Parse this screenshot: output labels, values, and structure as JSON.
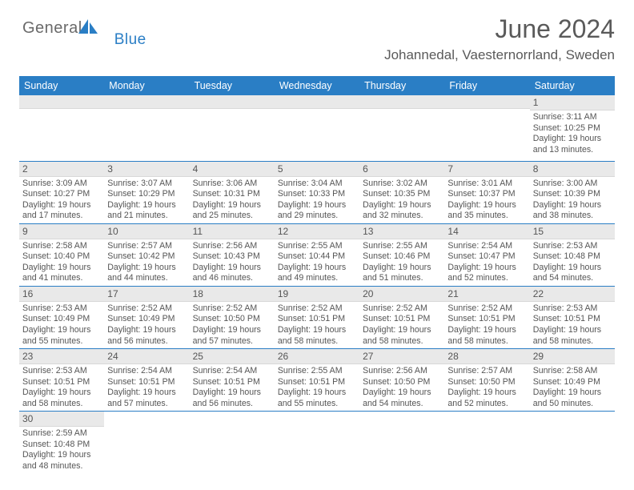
{
  "brand": {
    "part1": "General",
    "part2": "Blue"
  },
  "title": "June 2024",
  "location": "Johannedal, Vaesternorrland, Sweden",
  "headers": [
    "Sunday",
    "Monday",
    "Tuesday",
    "Wednesday",
    "Thursday",
    "Friday",
    "Saturday"
  ],
  "colors": {
    "headerBg": "#2a7ec5",
    "text": "#555555",
    "stripe": "#e9e9e9"
  },
  "weeks": [
    [
      null,
      null,
      null,
      null,
      null,
      null,
      {
        "n": "1",
        "sr": "3:11 AM",
        "ss": "10:25 PM",
        "dl": "19 hours and 13 minutes."
      }
    ],
    [
      {
        "n": "2",
        "sr": "3:09 AM",
        "ss": "10:27 PM",
        "dl": "19 hours and 17 minutes."
      },
      {
        "n": "3",
        "sr": "3:07 AM",
        "ss": "10:29 PM",
        "dl": "19 hours and 21 minutes."
      },
      {
        "n": "4",
        "sr": "3:06 AM",
        "ss": "10:31 PM",
        "dl": "19 hours and 25 minutes."
      },
      {
        "n": "5",
        "sr": "3:04 AM",
        "ss": "10:33 PM",
        "dl": "19 hours and 29 minutes."
      },
      {
        "n": "6",
        "sr": "3:02 AM",
        "ss": "10:35 PM",
        "dl": "19 hours and 32 minutes."
      },
      {
        "n": "7",
        "sr": "3:01 AM",
        "ss": "10:37 PM",
        "dl": "19 hours and 35 minutes."
      },
      {
        "n": "8",
        "sr": "3:00 AM",
        "ss": "10:39 PM",
        "dl": "19 hours and 38 minutes."
      }
    ],
    [
      {
        "n": "9",
        "sr": "2:58 AM",
        "ss": "10:40 PM",
        "dl": "19 hours and 41 minutes."
      },
      {
        "n": "10",
        "sr": "2:57 AM",
        "ss": "10:42 PM",
        "dl": "19 hours and 44 minutes."
      },
      {
        "n": "11",
        "sr": "2:56 AM",
        "ss": "10:43 PM",
        "dl": "19 hours and 46 minutes."
      },
      {
        "n": "12",
        "sr": "2:55 AM",
        "ss": "10:44 PM",
        "dl": "19 hours and 49 minutes."
      },
      {
        "n": "13",
        "sr": "2:55 AM",
        "ss": "10:46 PM",
        "dl": "19 hours and 51 minutes."
      },
      {
        "n": "14",
        "sr": "2:54 AM",
        "ss": "10:47 PM",
        "dl": "19 hours and 52 minutes."
      },
      {
        "n": "15",
        "sr": "2:53 AM",
        "ss": "10:48 PM",
        "dl": "19 hours and 54 minutes."
      }
    ],
    [
      {
        "n": "16",
        "sr": "2:53 AM",
        "ss": "10:49 PM",
        "dl": "19 hours and 55 minutes."
      },
      {
        "n": "17",
        "sr": "2:52 AM",
        "ss": "10:49 PM",
        "dl": "19 hours and 56 minutes."
      },
      {
        "n": "18",
        "sr": "2:52 AM",
        "ss": "10:50 PM",
        "dl": "19 hours and 57 minutes."
      },
      {
        "n": "19",
        "sr": "2:52 AM",
        "ss": "10:51 PM",
        "dl": "19 hours and 58 minutes."
      },
      {
        "n": "20",
        "sr": "2:52 AM",
        "ss": "10:51 PM",
        "dl": "19 hours and 58 minutes."
      },
      {
        "n": "21",
        "sr": "2:52 AM",
        "ss": "10:51 PM",
        "dl": "19 hours and 58 minutes."
      },
      {
        "n": "22",
        "sr": "2:53 AM",
        "ss": "10:51 PM",
        "dl": "19 hours and 58 minutes."
      }
    ],
    [
      {
        "n": "23",
        "sr": "2:53 AM",
        "ss": "10:51 PM",
        "dl": "19 hours and 58 minutes."
      },
      {
        "n": "24",
        "sr": "2:54 AM",
        "ss": "10:51 PM",
        "dl": "19 hours and 57 minutes."
      },
      {
        "n": "25",
        "sr": "2:54 AM",
        "ss": "10:51 PM",
        "dl": "19 hours and 56 minutes."
      },
      {
        "n": "26",
        "sr": "2:55 AM",
        "ss": "10:51 PM",
        "dl": "19 hours and 55 minutes."
      },
      {
        "n": "27",
        "sr": "2:56 AM",
        "ss": "10:50 PM",
        "dl": "19 hours and 54 minutes."
      },
      {
        "n": "28",
        "sr": "2:57 AM",
        "ss": "10:50 PM",
        "dl": "19 hours and 52 minutes."
      },
      {
        "n": "29",
        "sr": "2:58 AM",
        "ss": "10:49 PM",
        "dl": "19 hours and 50 minutes."
      }
    ],
    [
      {
        "n": "30",
        "sr": "2:59 AM",
        "ss": "10:48 PM",
        "dl": "19 hours and 48 minutes."
      },
      null,
      null,
      null,
      null,
      null,
      null
    ]
  ],
  "labels": {
    "sunrise": "Sunrise:",
    "sunset": "Sunset:",
    "daylight": "Daylight:"
  }
}
